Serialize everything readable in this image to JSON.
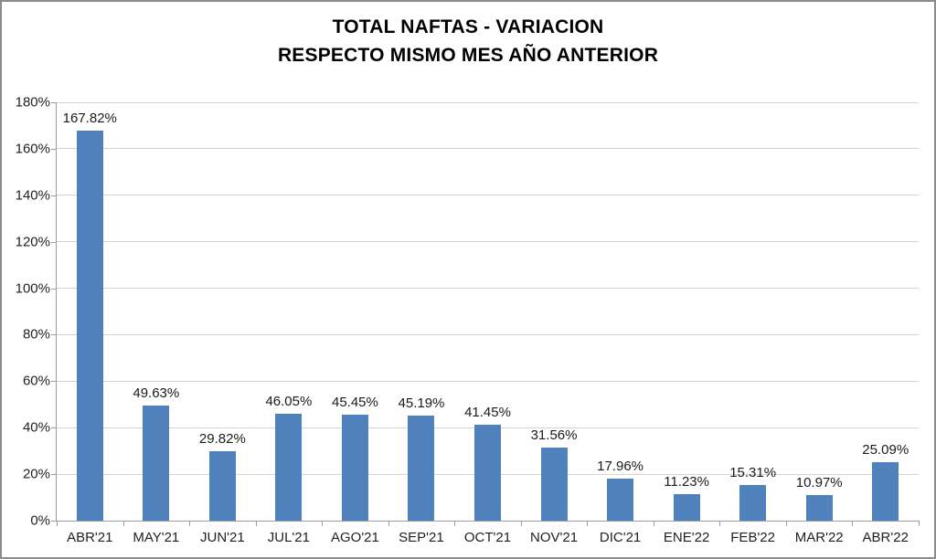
{
  "chart_data": {
    "type": "bar",
    "title_line1": "TOTAL NAFTAS - VARIACION",
    "title_line2": "RESPECTO MISMO MES AÑO ANTERIOR",
    "categories": [
      "ABR'21",
      "MAY'21",
      "JUN'21",
      "JUL'21",
      "AGO'21",
      "SEP'21",
      "OCT'21",
      "NOV'21",
      "DIC'21",
      "ENE'22",
      "FEB'22",
      "MAR'22",
      "ABR'22"
    ],
    "values": [
      167.82,
      49.63,
      29.82,
      46.05,
      45.45,
      45.19,
      41.45,
      31.56,
      17.96,
      11.23,
      15.31,
      10.97,
      25.09
    ],
    "data_labels": [
      "167.82%",
      "49.63%",
      "29.82%",
      "46.05%",
      "45.45%",
      "45.19%",
      "41.45%",
      "31.56%",
      "17.96%",
      "11.23%",
      "15.31%",
      "10.97%",
      "25.09%"
    ],
    "xlabel": "",
    "ylabel": "",
    "ylim": [
      0,
      180
    ],
    "ytick_step": 20,
    "ytick_labels": [
      "0%",
      "20%",
      "40%",
      "60%",
      "80%",
      "100%",
      "120%",
      "140%",
      "160%",
      "180%"
    ],
    "grid": true,
    "legend_position": "none",
    "bar_color": "#4f81bd",
    "gridline_color": "#d4d4d4",
    "axis_color": "#9c9c9c",
    "frame_color": "#8c8c8c",
    "text_color": "#1f1f1f"
  }
}
